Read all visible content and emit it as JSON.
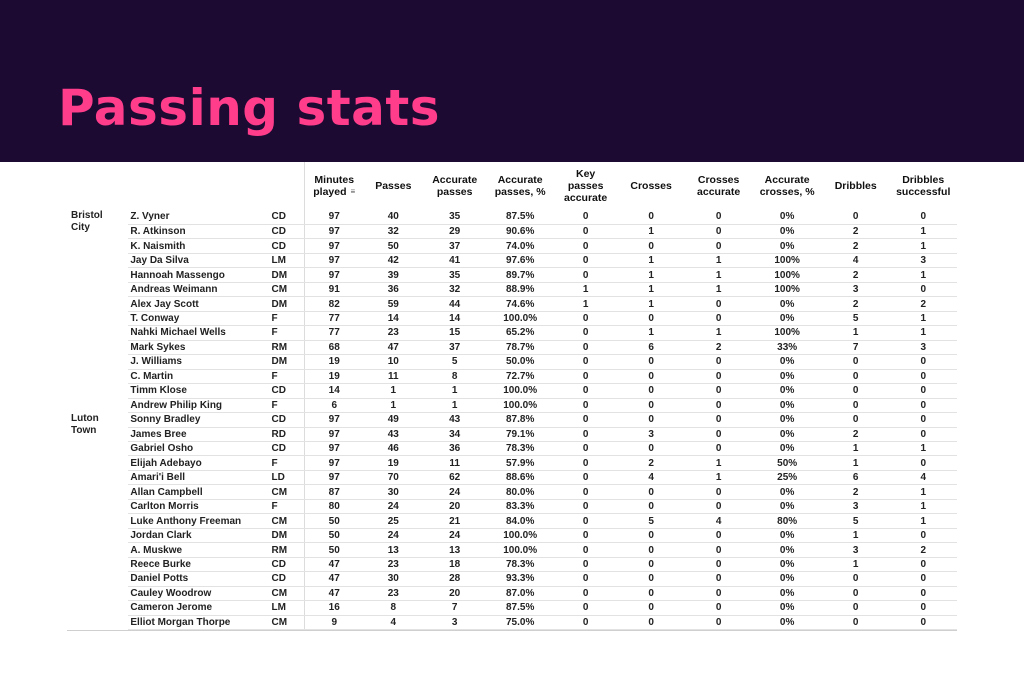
{
  "page": {
    "title": "Passing stats"
  },
  "table": {
    "headers": [
      "Minutes played",
      "Passes",
      "Accurate passes",
      "Accurate passes, %",
      "Key passes accurate",
      "Crosses",
      "Crosses accurate",
      "Accurate crosses, %",
      "Dribbles",
      "Dribbles successful"
    ],
    "header_lines": [
      [
        "Minutes",
        "played"
      ],
      [
        "Passes"
      ],
      [
        "Accurate",
        "passes"
      ],
      [
        "Accurate",
        "passes, %"
      ],
      [
        "Key",
        "passes",
        "accurate"
      ],
      [
        "Crosses"
      ],
      [
        "Crosses",
        "accurate"
      ],
      [
        "Accurate",
        "crosses, %"
      ],
      [
        "Dribbles"
      ],
      [
        "Dribbles",
        "successful"
      ]
    ],
    "teams": [
      {
        "name_lines": [
          "Bristol",
          "City"
        ],
        "players": [
          [
            "Z. Vyner",
            "CD",
            "97",
            "40",
            "35",
            "87.5%",
            "0",
            "0",
            "0",
            "0%",
            "0",
            "0"
          ],
          [
            "R. Atkinson",
            "CD",
            "97",
            "32",
            "29",
            "90.6%",
            "0",
            "1",
            "0",
            "0%",
            "2",
            "1"
          ],
          [
            "K. Naismith",
            "CD",
            "97",
            "50",
            "37",
            "74.0%",
            "0",
            "0",
            "0",
            "0%",
            "2",
            "1"
          ],
          [
            "Jay Da Silva",
            "LM",
            "97",
            "42",
            "41",
            "97.6%",
            "0",
            "1",
            "1",
            "100%",
            "4",
            "3"
          ],
          [
            "Hannoah Massengo",
            "DM",
            "97",
            "39",
            "35",
            "89.7%",
            "0",
            "1",
            "1",
            "100%",
            "2",
            "1"
          ],
          [
            "Andreas Weimann",
            "CM",
            "91",
            "36",
            "32",
            "88.9%",
            "1",
            "1",
            "1",
            "100%",
            "3",
            "0"
          ],
          [
            "Alex Jay Scott",
            "DM",
            "82",
            "59",
            "44",
            "74.6%",
            "1",
            "1",
            "0",
            "0%",
            "2",
            "2"
          ],
          [
            "T. Conway",
            "F",
            "77",
            "14",
            "14",
            "100.0%",
            "0",
            "0",
            "0",
            "0%",
            "5",
            "1"
          ],
          [
            "Nahki Michael Wells",
            "F",
            "77",
            "23",
            "15",
            "65.2%",
            "0",
            "1",
            "1",
            "100%",
            "1",
            "1"
          ],
          [
            "Mark Sykes",
            "RM",
            "68",
            "47",
            "37",
            "78.7%",
            "0",
            "6",
            "2",
            "33%",
            "7",
            "3"
          ],
          [
            "J. Williams",
            "DM",
            "19",
            "10",
            "5",
            "50.0%",
            "0",
            "0",
            "0",
            "0%",
            "0",
            "0"
          ],
          [
            "C. Martin",
            "F",
            "19",
            "11",
            "8",
            "72.7%",
            "0",
            "0",
            "0",
            "0%",
            "0",
            "0"
          ],
          [
            "Timm Klose",
            "CD",
            "14",
            "1",
            "1",
            "100.0%",
            "0",
            "0",
            "0",
            "0%",
            "0",
            "0"
          ],
          [
            "Andrew Philip King",
            "F",
            "6",
            "1",
            "1",
            "100.0%",
            "0",
            "0",
            "0",
            "0%",
            "0",
            "0"
          ]
        ]
      },
      {
        "name_lines": [
          "Luton",
          "Town"
        ],
        "players": [
          [
            "Sonny Bradley",
            "CD",
            "97",
            "49",
            "43",
            "87.8%",
            "0",
            "0",
            "0",
            "0%",
            "0",
            "0"
          ],
          [
            "James Bree",
            "RD",
            "97",
            "43",
            "34",
            "79.1%",
            "0",
            "3",
            "0",
            "0%",
            "2",
            "0"
          ],
          [
            "Gabriel Osho",
            "CD",
            "97",
            "46",
            "36",
            "78.3%",
            "0",
            "0",
            "0",
            "0%",
            "1",
            "1"
          ],
          [
            "Elijah Adebayo",
            "F",
            "97",
            "19",
            "11",
            "57.9%",
            "0",
            "2",
            "1",
            "50%",
            "1",
            "0"
          ],
          [
            "Amari'i Bell",
            "LD",
            "97",
            "70",
            "62",
            "88.6%",
            "0",
            "4",
            "1",
            "25%",
            "6",
            "4"
          ],
          [
            "Allan Campbell",
            "CM",
            "87",
            "30",
            "24",
            "80.0%",
            "0",
            "0",
            "0",
            "0%",
            "2",
            "1"
          ],
          [
            "Carlton Morris",
            "F",
            "80",
            "24",
            "20",
            "83.3%",
            "0",
            "0",
            "0",
            "0%",
            "3",
            "1"
          ],
          [
            "Luke Anthony Freeman",
            "CM",
            "50",
            "25",
            "21",
            "84.0%",
            "0",
            "5",
            "4",
            "80%",
            "5",
            "1"
          ],
          [
            "Jordan Clark",
            "DM",
            "50",
            "24",
            "24",
            "100.0%",
            "0",
            "0",
            "0",
            "0%",
            "1",
            "0"
          ],
          [
            "A. Muskwe",
            "RM",
            "50",
            "13",
            "13",
            "100.0%",
            "0",
            "0",
            "0",
            "0%",
            "3",
            "2"
          ],
          [
            "Reece Burke",
            "CD",
            "47",
            "23",
            "18",
            "78.3%",
            "0",
            "0",
            "0",
            "0%",
            "1",
            "0"
          ],
          [
            "Daniel Potts",
            "CD",
            "47",
            "30",
            "28",
            "93.3%",
            "0",
            "0",
            "0",
            "0%",
            "0",
            "0"
          ],
          [
            "Cauley Woodrow",
            "CM",
            "47",
            "23",
            "20",
            "87.0%",
            "0",
            "0",
            "0",
            "0%",
            "0",
            "0"
          ],
          [
            "Cameron Jerome",
            "LM",
            "16",
            "8",
            "7",
            "87.5%",
            "0",
            "0",
            "0",
            "0%",
            "0",
            "0"
          ],
          [
            "Elliot Morgan Thorpe",
            "CM",
            "9",
            "4",
            "3",
            "75.0%",
            "0",
            "0",
            "0",
            "0%",
            "0",
            "0"
          ]
        ]
      }
    ]
  },
  "colors": {
    "banner": "#1c0a33",
    "title": "#ff3d8b"
  },
  "icons": {
    "sort": "sort-filter-icon"
  }
}
